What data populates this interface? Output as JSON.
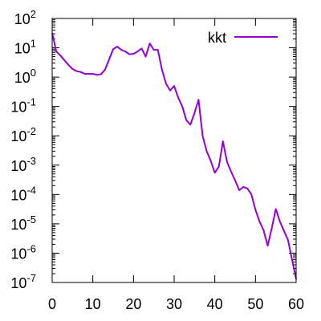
{
  "chart_data": {
    "type": "line",
    "title": "",
    "xlabel": "",
    "ylabel": "",
    "y_scale": "log",
    "xlim": [
      0,
      60
    ],
    "ylim": [
      1e-07,
      100
    ],
    "grid": false,
    "legend_position": "top-right",
    "x_ticks": [
      {
        "value": 0,
        "label": "0"
      },
      {
        "value": 10,
        "label": "10"
      },
      {
        "value": 20,
        "label": "20"
      },
      {
        "value": 30,
        "label": "30"
      },
      {
        "value": 40,
        "label": "40"
      },
      {
        "value": 50,
        "label": "50"
      },
      {
        "value": 60,
        "label": "60"
      }
    ],
    "y_ticks": [
      {
        "value": 100,
        "base": "10",
        "exp": "2"
      },
      {
        "value": 10,
        "base": "10",
        "exp": "1"
      },
      {
        "value": 1,
        "base": "10",
        "exp": "0"
      },
      {
        "value": 0.1,
        "base": "10",
        "exp": "-1"
      },
      {
        "value": 0.01,
        "base": "10",
        "exp": "-2"
      },
      {
        "value": 0.001,
        "base": "10",
        "exp": "-3"
      },
      {
        "value": 0.0001,
        "base": "10",
        "exp": "-4"
      },
      {
        "value": 1e-05,
        "base": "10",
        "exp": "-5"
      },
      {
        "value": 1e-06,
        "base": "10",
        "exp": "-6"
      },
      {
        "value": 1e-07,
        "base": "10",
        "exp": "-7"
      }
    ],
    "series": [
      {
        "name": "kkt",
        "color": "#9400d3",
        "x": [
          0,
          1,
          2,
          3,
          4,
          5,
          6,
          7,
          8,
          9,
          10,
          11,
          12,
          13,
          14,
          15,
          16,
          17,
          18,
          19,
          20,
          21,
          22,
          23,
          24,
          25,
          26,
          27,
          28,
          29,
          30,
          31,
          32,
          33,
          34,
          35,
          36,
          37,
          38,
          39,
          40,
          41,
          42,
          43,
          44,
          45,
          46,
          47,
          48,
          49,
          50,
          51,
          52,
          53,
          54,
          55,
          56,
          57,
          58,
          59,
          60
        ],
        "y": [
          32,
          7.5,
          5.5,
          3.8,
          2.6,
          1.9,
          1.6,
          1.5,
          1.3,
          1.3,
          1.3,
          1.2,
          1.25,
          1.8,
          4,
          9,
          11,
          8.5,
          7.5,
          6,
          6.2,
          7.5,
          9.5,
          5,
          14,
          8.5,
          8.5,
          1.8,
          0.6,
          0.35,
          0.5,
          0.2,
          0.1,
          0.034,
          0.024,
          0.06,
          0.17,
          0.01,
          0.003,
          0.0014,
          0.00055,
          0.0009,
          0.0065,
          0.0013,
          0.0006,
          0.0003,
          0.00014,
          0.00018,
          0.00016,
          0.0001,
          3e-05,
          1.2e-05,
          6e-06,
          1.8e-06,
          7e-06,
          3.2e-05,
          1.2e-05,
          5.8e-06,
          2.8e-06,
          6e-07,
          1.3e-07
        ]
      }
    ]
  }
}
